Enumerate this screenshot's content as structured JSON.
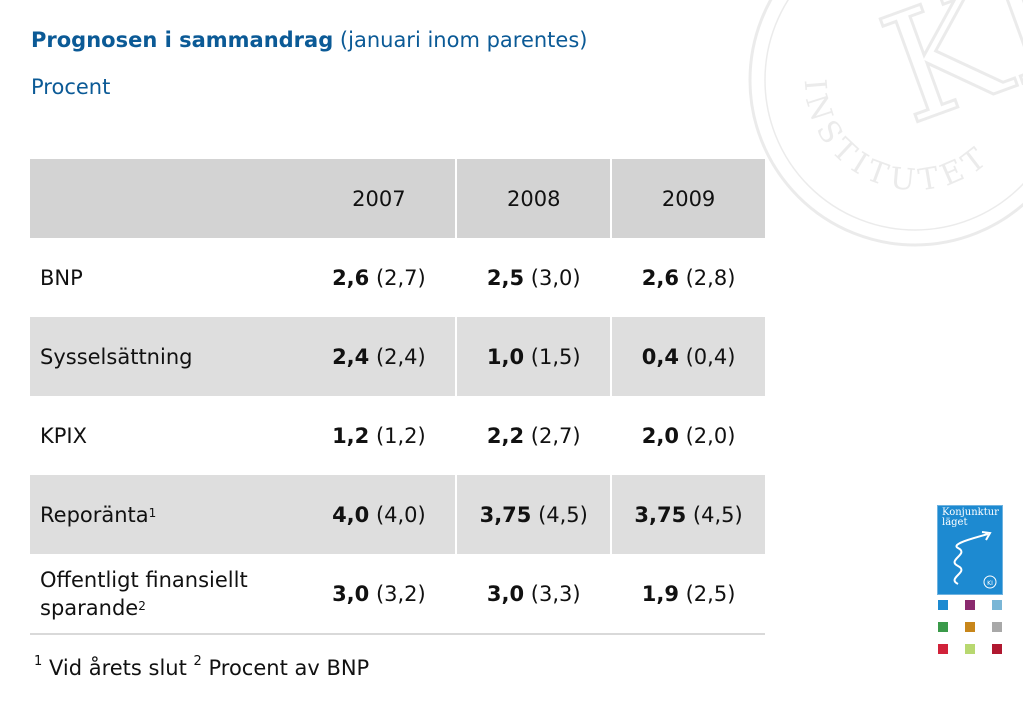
{
  "header": {
    "title_bold": "Prognosen i sammandrag",
    "title_rest": " (januari inom parentes)",
    "subtitle": "Procent"
  },
  "watermark": {
    "letters": "KI",
    "ring_text": "INSTITUTET"
  },
  "table": {
    "columns": [
      "",
      "2007",
      "2008",
      "2009"
    ],
    "rows": [
      {
        "label": "BNP",
        "sup": "",
        "cells": [
          {
            "value": "2,6",
            "prev": " (2,7)"
          },
          {
            "value": "2,5",
            "prev": " (3,0)"
          },
          {
            "value": "2,6",
            "prev": " (2,8)"
          }
        ]
      },
      {
        "label": "Sysselsättning",
        "sup": "",
        "cells": [
          {
            "value": "2,4",
            "prev": " (2,4)"
          },
          {
            "value": "1,0",
            "prev": " (1,5)"
          },
          {
            "value": "0,4",
            "prev": " (0,4)"
          }
        ]
      },
      {
        "label": "KPIX",
        "sup": "",
        "cells": [
          {
            "value": "1,2",
            "prev": " (1,2)"
          },
          {
            "value": "2,2",
            "prev": " (2,7)"
          },
          {
            "value": "2,0",
            "prev": " (2,0)"
          }
        ]
      },
      {
        "label": "Reporänta",
        "sup": "1",
        "cells": [
          {
            "value": "4,0",
            "prev": " (4,0)"
          },
          {
            "value": "3,75",
            "prev": " (4,5)"
          },
          {
            "value": "3,75",
            "prev": " (4,5)"
          }
        ]
      },
      {
        "label_line1": "Offentligt finansiellt",
        "label_line2": "sparande",
        "sup": "2",
        "cells": [
          {
            "value": "3,0",
            "prev": " (3,2)"
          },
          {
            "value": "3,0",
            "prev": " (3,3)"
          },
          {
            "value": "1,9",
            "prev": " (2,5)"
          }
        ]
      }
    ]
  },
  "footnote": {
    "sup1": "1",
    "text1": " Vid årets slut ",
    "sup2": "2",
    "text2": " Procent av BNP"
  },
  "logo": {
    "title": "Konjunktur läget",
    "badge": "KI"
  },
  "colors": {
    "accent": "#0b5a96",
    "header_row": "#d3d3d3",
    "shaded_row": "#dedede",
    "thumbs": [
      "#1d8ad1",
      "#8a2a6e",
      "#7ab6d6",
      "#3a9a4a",
      "#c8861a",
      "#a8a8a8",
      "#d1223a",
      "#b8d870",
      "#b01830"
    ]
  }
}
